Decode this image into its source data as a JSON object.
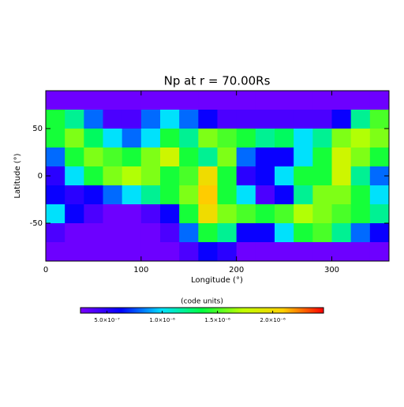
{
  "chart_data": {
    "type": "heatmap",
    "title": "Np at r = 70.00Rs",
    "x_label": "Longitude (°)",
    "y_label": "Latitude (°)",
    "xlim": [
      0,
      360
    ],
    "ylim": [
      -90,
      90
    ],
    "xticks": [
      0,
      100,
      200,
      300
    ],
    "yticks": [
      -50,
      0,
      50
    ],
    "x": [
      10,
      30,
      50,
      70,
      90,
      110,
      130,
      150,
      170,
      190,
      210,
      230,
      250,
      270,
      290,
      310,
      330,
      350
    ],
    "y": [
      80,
      60,
      40,
      20,
      0,
      -20,
      -40,
      -60,
      -80
    ],
    "z": [
      [
        3e-07,
        3e-07,
        3e-07,
        3e-07,
        3e-07,
        3e-07,
        3e-07,
        3e-07,
        3e-07,
        3e-07,
        3e-07,
        3e-07,
        3e-07,
        3e-07,
        3e-07,
        3e-07,
        3e-07,
        3e-07
      ],
      [
        1.4e-06,
        1.2e-06,
        8e-07,
        4e-07,
        4e-07,
        8e-07,
        1e-06,
        8e-07,
        6e-07,
        4e-07,
        4e-07,
        4e-07,
        4e-07,
        4e-07,
        4e-07,
        6e-07,
        1.2e-06,
        1.5e-06
      ],
      [
        1.4e-06,
        1.6e-06,
        1.3e-06,
        1e-06,
        8e-07,
        1e-06,
        1.4e-06,
        1.2e-06,
        1.6e-06,
        1.5e-06,
        1.4e-06,
        1.2e-06,
        1.3e-06,
        1e-06,
        1.2e-06,
        1.6e-06,
        1.7e-06,
        1.6e-06
      ],
      [
        8e-07,
        1.4e-06,
        1.6e-06,
        1.5e-06,
        1.4e-06,
        1.6e-06,
        1.8e-06,
        1.4e-06,
        1.2e-06,
        1.6e-06,
        8e-07,
        6e-07,
        6e-07,
        1e-06,
        1.4e-06,
        1.8e-06,
        1.6e-06,
        1.4e-06
      ],
      [
        5e-07,
        1e-06,
        1.4e-06,
        1.6e-06,
        1.7e-06,
        1.6e-06,
        1.4e-06,
        1.5e-06,
        2e-06,
        1.4e-06,
        5e-07,
        6e-07,
        1e-06,
        1.4e-06,
        1.4e-06,
        1.8e-06,
        1.2e-06,
        8e-07
      ],
      [
        6e-07,
        5e-07,
        6e-07,
        8e-07,
        1e-06,
        1.2e-06,
        1.4e-06,
        1.6e-06,
        2.1e-06,
        1.4e-06,
        1e-06,
        4e-07,
        6e-07,
        1.2e-06,
        1.6e-06,
        1.6e-06,
        1.4e-06,
        1e-06
      ],
      [
        1e-06,
        6e-07,
        4e-07,
        3e-07,
        3e-07,
        4e-07,
        6e-07,
        1.4e-06,
        2e-06,
        1.6e-06,
        1.5e-06,
        1.4e-06,
        1.5e-06,
        1.7e-06,
        1.6e-06,
        1.5e-06,
        1.4e-06,
        1.2e-06
      ],
      [
        4e-07,
        3e-07,
        3e-07,
        3e-07,
        3e-07,
        3e-07,
        4e-07,
        8e-07,
        1.4e-06,
        1.2e-06,
        6e-07,
        6e-07,
        1e-06,
        1.4e-06,
        1.5e-06,
        1.2e-06,
        8e-07,
        6e-07
      ],
      [
        3e-07,
        3e-07,
        3e-07,
        3e-07,
        3e-07,
        3e-07,
        3e-07,
        4e-07,
        6e-07,
        5e-07,
        3e-07,
        3e-07,
        3e-07,
        3e-07,
        3e-07,
        3e-07,
        3e-07,
        3e-07
      ]
    ],
    "colorbar_label": "(code units)",
    "clim": [
      2.6e-07,
      2.46e-06
    ],
    "cticks": [
      {
        "value": 5e-07,
        "label": "5.0×10⁻⁷"
      },
      {
        "value": 1e-06,
        "label": "1.0×10⁻⁶"
      },
      {
        "value": 1.5e-06,
        "label": "1.5×10⁻⁶"
      },
      {
        "value": 2e-06,
        "label": "2.0×10⁻⁶"
      }
    ],
    "colormap": [
      "#7a00ff",
      "#0000ff",
      "#00e0ff",
      "#00ff40",
      "#c0ff00",
      "#ffd000",
      "#ff0000"
    ]
  }
}
